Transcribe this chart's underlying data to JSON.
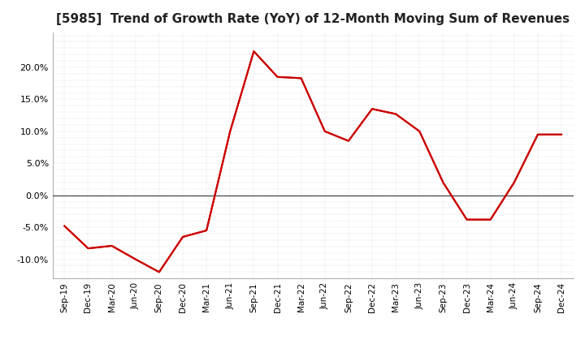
{
  "title": "[5985]  Trend of Growth Rate (YoY) of 12-Month Moving Sum of Revenues",
  "title_fontsize": 11,
  "line_color": "#cc0000",
  "line_width": 1.5,
  "background_color": "#ffffff",
  "grid_color": "#999999",
  "zero_line_color": "#444444",
  "xlabels": [
    "Sep-19",
    "Dec-19",
    "Mar-20",
    "Jun-20",
    "Sep-20",
    "Dec-20",
    "Mar-21",
    "Jun-21",
    "Sep-21",
    "Dec-21",
    "Mar-22",
    "Jun-22",
    "Sep-22",
    "Dec-22",
    "Mar-23",
    "Jun-23",
    "Sep-23",
    "Dec-23",
    "Mar-24",
    "Jun-24",
    "Sep-24",
    "Dec-24"
  ],
  "yvalues": [
    -0.048,
    -0.083,
    -0.079,
    -0.1,
    -0.12,
    -0.065,
    -0.055,
    0.1,
    0.225,
    0.185,
    0.183,
    0.1,
    0.085,
    0.135,
    0.127,
    0.1,
    0.02,
    -0.038,
    -0.038,
    0.02,
    0.095,
    0.095
  ],
  "ylim": [
    -0.13,
    0.255
  ],
  "yticks": [
    -0.1,
    -0.05,
    0.0,
    0.05,
    0.1,
    0.15,
    0.2
  ],
  "ytick_labels": [
    "-10.0%",
    "-5.0%",
    "0.0%",
    "5.0%",
    "10.0%",
    "15.0%",
    "20.0%"
  ]
}
